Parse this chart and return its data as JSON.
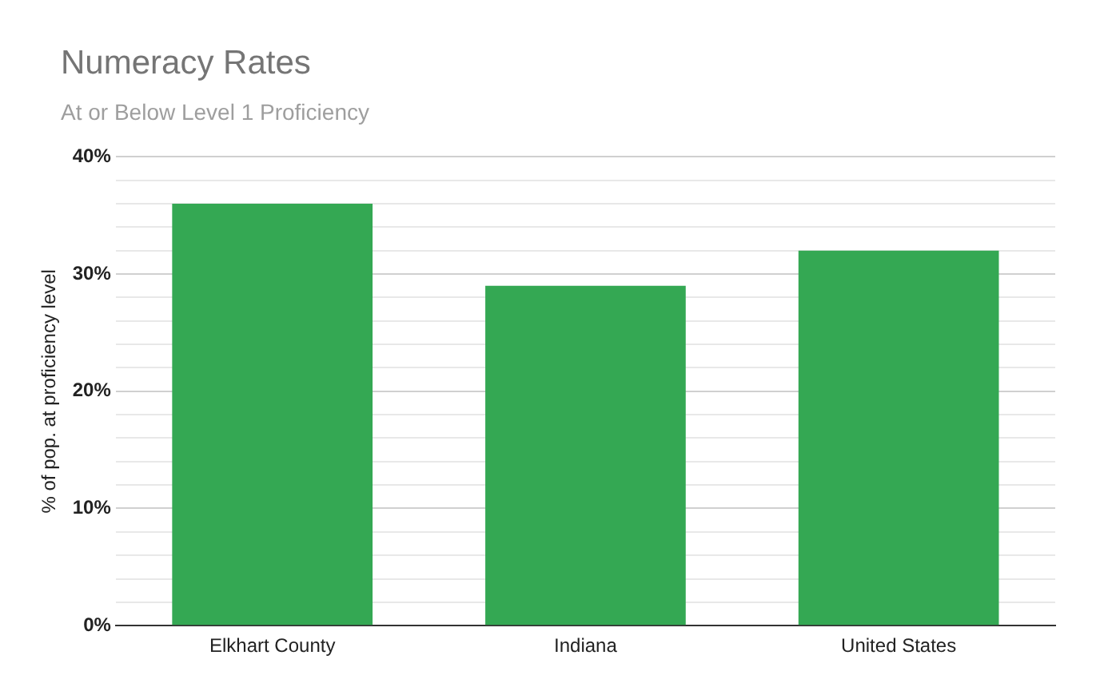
{
  "chart_data": {
    "type": "bar",
    "title": "Numeracy Rates",
    "subtitle": "At or Below Level 1 Proficiency",
    "ylabel": "% of pop. at proficiency level",
    "categories": [
      "Elkhart County",
      "Indiana",
      "United States"
    ],
    "values": [
      36,
      29,
      32
    ],
    "color": "#34a853",
    "ylim": [
      0,
      40
    ],
    "yticks": [
      {
        "value": 0,
        "label": "0%"
      },
      {
        "value": 2,
        "label": null
      },
      {
        "value": 4,
        "label": null
      },
      {
        "value": 6,
        "label": null
      },
      {
        "value": 8,
        "label": null
      },
      {
        "value": 10,
        "label": "10%"
      },
      {
        "value": 12,
        "label": null
      },
      {
        "value": 14,
        "label": null
      },
      {
        "value": 16,
        "label": null
      },
      {
        "value": 18,
        "label": null
      },
      {
        "value": 20,
        "label": "20%"
      },
      {
        "value": 22,
        "label": null
      },
      {
        "value": 24,
        "label": null
      },
      {
        "value": 26,
        "label": null
      },
      {
        "value": 28,
        "label": null
      },
      {
        "value": 30,
        "label": "30%"
      },
      {
        "value": 32,
        "label": null
      },
      {
        "value": 34,
        "label": null
      },
      {
        "value": 36,
        "label": null
      },
      {
        "value": 38,
        "label": null
      },
      {
        "value": 40,
        "label": "40%"
      }
    ],
    "grid": "y",
    "legend": false
  }
}
